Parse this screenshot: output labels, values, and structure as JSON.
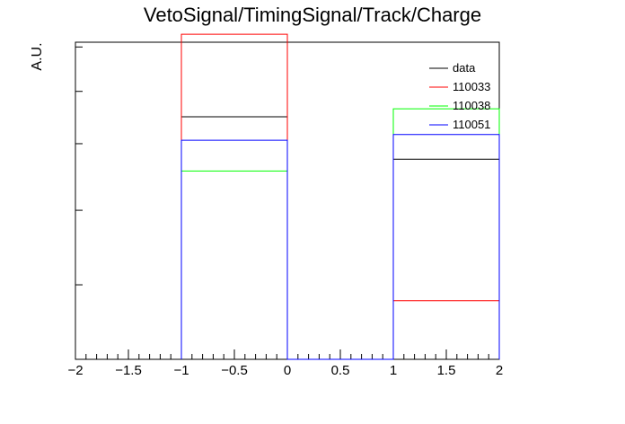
{
  "chart_data": {
    "type": "histogram",
    "title": "VetoSignal/TimingSignal/Track/Charge",
    "xlabel": "",
    "ylabel": "A.U.",
    "xlim": [
      -2,
      2
    ],
    "ylim": [
      0,
      1.0
    ],
    "x_ticks": [
      "−2",
      "−1.5",
      "−1",
      "−0.5",
      "0",
      "0.5",
      "1",
      "1.5",
      "2"
    ],
    "bin_edges": [
      -1,
      0,
      1,
      2
    ],
    "legend_position": "top-right",
    "grid": false,
    "series": [
      {
        "name": "data",
        "color": "#000000",
        "values": [
          0.765,
          0,
          0.631
        ]
      },
      {
        "name": "110033",
        "color": "#ff0000",
        "values": [
          1.025,
          0,
          0.185
        ]
      },
      {
        "name": "110038",
        "color": "#00ff00",
        "values": [
          0.594,
          0,
          0.79
        ]
      },
      {
        "name": "110051",
        "color": "#0000ff",
        "values": [
          0.691,
          0,
          0.709
        ]
      }
    ]
  }
}
